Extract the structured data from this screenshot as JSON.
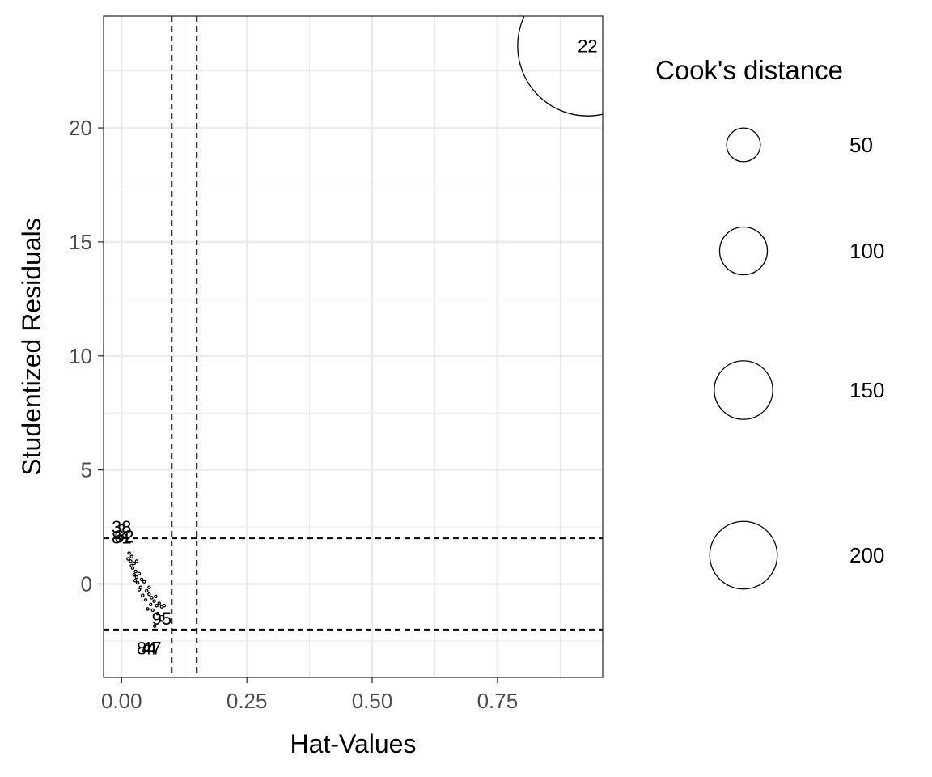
{
  "chart_data": {
    "type": "scatter",
    "title": "",
    "xlabel": "Hat-Values",
    "ylabel": "Studentized Residuals",
    "xlim": [
      -0.036,
      0.96
    ],
    "ylim": [
      -4.1,
      24.9
    ],
    "x_ticks": [
      0.0,
      0.25,
      0.5,
      0.75
    ],
    "x_tick_labels": [
      "0.00",
      "0.25",
      "0.50",
      "0.75"
    ],
    "x_minor_ticks": [
      0.125,
      0.375,
      0.625,
      0.875
    ],
    "y_ticks": [
      0,
      5,
      10,
      15,
      20
    ],
    "y_tick_labels": [
      "0",
      "5",
      "10",
      "15",
      "20"
    ],
    "y_minor_ticks": [
      -2.5,
      2.5,
      7.5,
      12.5,
      17.5,
      22.5
    ],
    "grid": true,
    "reference_lines": {
      "vertical": [
        0.1,
        0.15
      ],
      "horizontal": [
        -2,
        2
      ],
      "style": "dashed"
    },
    "size_variable": "Cook's distance",
    "size_legend": {
      "title": "Cook's distance",
      "position": "right",
      "entries": [
        {
          "label": "50",
          "value": 50
        },
        {
          "label": "100",
          "value": 100
        },
        {
          "label": "150",
          "value": 150
        },
        {
          "label": "200",
          "value": 200
        }
      ]
    },
    "labeled_points": [
      {
        "label": "22",
        "x": 0.93,
        "y": 23.6,
        "cooks": 215
      },
      {
        "label": "95",
        "x": 0.08,
        "y": -1.5,
        "cooks": 0.3
      },
      {
        "label": "47",
        "x": 0.06,
        "y": -2.8,
        "cooks": 0.4
      },
      {
        "label": "84",
        "x": 0.05,
        "y": -2.8,
        "cooks": 0.3
      },
      {
        "label": "38",
        "x": 0.0,
        "y": 2.5,
        "cooks": 0.2
      },
      {
        "label": "62",
        "x": 0.005,
        "y": 2.1,
        "cooks": 0.2
      },
      {
        "label": "81",
        "x": 0.0,
        "y": 2.05,
        "cooks": 0.2
      }
    ],
    "points": [
      {
        "x": 0.015,
        "y": 1.35
      },
      {
        "x": 0.02,
        "y": 1.2
      },
      {
        "x": 0.018,
        "y": 1.0
      },
      {
        "x": 0.025,
        "y": 0.9
      },
      {
        "x": 0.03,
        "y": 1.0
      },
      {
        "x": 0.022,
        "y": 0.7
      },
      {
        "x": 0.028,
        "y": 0.55
      },
      {
        "x": 0.025,
        "y": 0.4
      },
      {
        "x": 0.03,
        "y": 0.3
      },
      {
        "x": 0.035,
        "y": 0.45
      },
      {
        "x": 0.04,
        "y": 0.2
      },
      {
        "x": 0.032,
        "y": 0.05
      },
      {
        "x": 0.045,
        "y": 0.1
      },
      {
        "x": 0.038,
        "y": -0.15
      },
      {
        "x": 0.05,
        "y": -0.3
      },
      {
        "x": 0.055,
        "y": -0.45
      },
      {
        "x": 0.042,
        "y": -0.5
      },
      {
        "x": 0.06,
        "y": -0.6
      },
      {
        "x": 0.065,
        "y": -0.75
      },
      {
        "x": 0.058,
        "y": -0.9
      },
      {
        "x": 0.07,
        "y": -0.95
      },
      {
        "x": 0.075,
        "y": -0.85
      },
      {
        "x": 0.08,
        "y": -1.0
      },
      {
        "x": 0.062,
        "y": -1.15
      },
      {
        "x": 0.052,
        "y": -1.1
      },
      {
        "x": 0.072,
        "y": -1.3
      },
      {
        "x": 0.066,
        "y": -1.85
      },
      {
        "x": 0.085,
        "y": -0.95
      },
      {
        "x": 0.048,
        "y": -0.7
      },
      {
        "x": 0.035,
        "y": -0.25
      },
      {
        "x": 0.027,
        "y": 0.15
      },
      {
        "x": 0.02,
        "y": 0.8
      },
      {
        "x": 0.013,
        "y": 1.1
      },
      {
        "x": 0.055,
        "y": -0.15
      },
      {
        "x": 0.068,
        "y": -0.55
      }
    ]
  }
}
